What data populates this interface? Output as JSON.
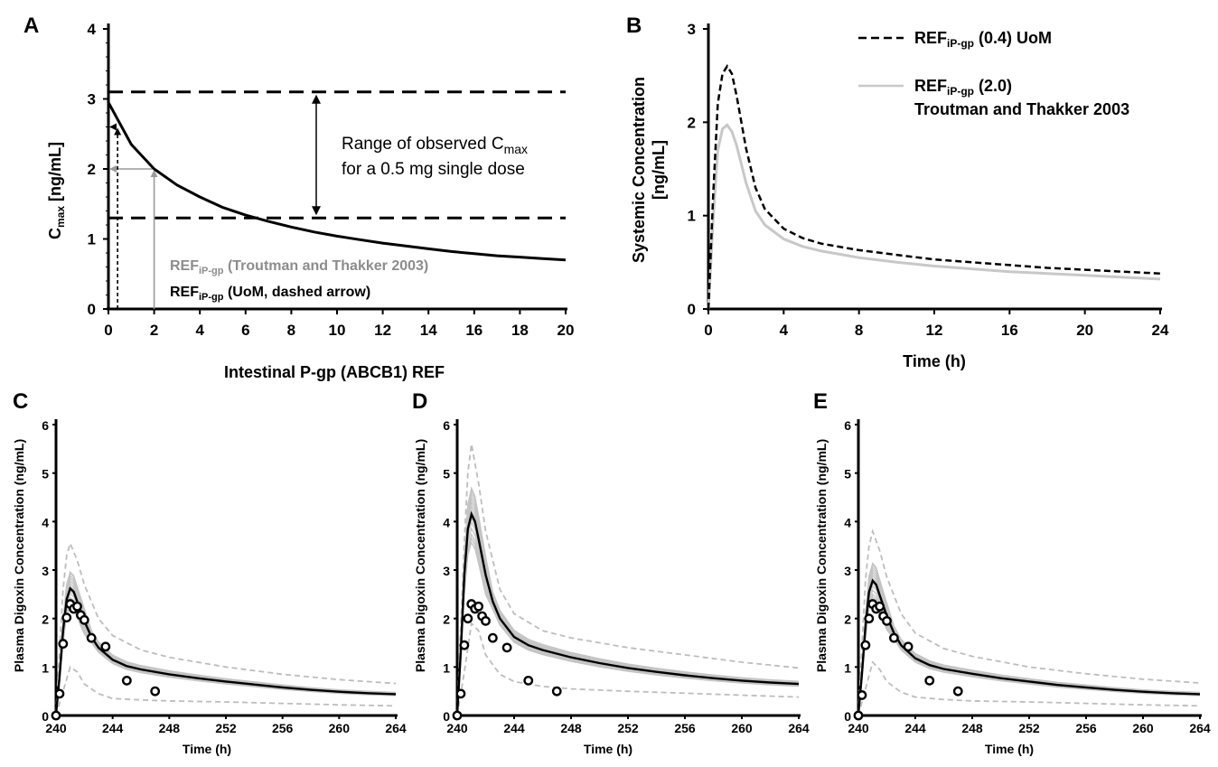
{
  "chart_data": [
    {
      "panel": "A",
      "type": "line",
      "xlabel": "Intestinal P-gp (ABCB1) REF",
      "ylabel_main": "C",
      "ylabel_sub": "max",
      "ylabel_rest": " [ng/mL]",
      "xlim": [
        0,
        20
      ],
      "ylim": [
        0,
        4
      ],
      "xticks": [
        "0",
        "2",
        "4",
        "6",
        "8",
        "10",
        "12",
        "14",
        "16",
        "18",
        "20"
      ],
      "yticks": [
        "0",
        "1",
        "2",
        "3",
        "4"
      ],
      "series": [
        {
          "x": [
            0,
            1,
            2,
            3,
            4,
            5,
            6,
            7,
            8,
            9,
            10,
            11,
            12,
            13,
            14,
            15,
            16,
            17,
            18,
            19,
            20
          ],
          "y": [
            2.95,
            2.35,
            2.0,
            1.77,
            1.6,
            1.45,
            1.34,
            1.25,
            1.17,
            1.1,
            1.04,
            0.99,
            0.94,
            0.9,
            0.86,
            0.82,
            0.79,
            0.76,
            0.74,
            0.72,
            0.7
          ]
        }
      ],
      "observed_range": [
        1.3,
        3.1
      ],
      "range_text_1": "Range of observed C",
      "range_text_1_sub": "max",
      "range_text_2": "for a 0.5 mg single dose",
      "markers": [
        {
          "x": 2.0,
          "y": 2.0,
          "color": "#9a9a9a",
          "dashed": false
        },
        {
          "x": 0.4,
          "y": 2.6,
          "color": "#000000",
          "dashed": true
        }
      ],
      "marker_label_1": {
        "pre": "REF",
        "sub": "iP-gp",
        "post": " (Troutman and Thakker 2003)",
        "color": "#8c8c8c"
      },
      "marker_label_2": {
        "pre": "REF",
        "sub": "iP-gp",
        "post": " (UoM, dashed arrow)",
        "color": "#000000"
      }
    },
    {
      "panel": "B",
      "type": "line",
      "xlabel": "Time (h)",
      "ylabel_1": "Systemic Concentration",
      "ylabel_2": "[ng/mL]",
      "xlim": [
        0,
        24
      ],
      "ylim": [
        0,
        3
      ],
      "xticks": [
        "0",
        "4",
        "8",
        "12",
        "16",
        "20",
        "24"
      ],
      "yticks": [
        "0",
        "1",
        "2",
        "3"
      ],
      "series": [
        {
          "legend_pre": "REF",
          "legend_sub": "iP-gp",
          "legend_post": " (0.4) UoM",
          "color": "#000000",
          "dashed": true,
          "x": [
            0,
            0.25,
            0.5,
            0.75,
            1.0,
            1.25,
            1.5,
            2,
            2.5,
            3,
            4,
            5,
            6,
            8,
            10,
            12,
            14,
            16,
            18,
            20,
            22,
            24
          ],
          "y": [
            0,
            1.2,
            2.2,
            2.52,
            2.6,
            2.52,
            2.28,
            1.72,
            1.3,
            1.07,
            0.86,
            0.76,
            0.7,
            0.63,
            0.58,
            0.53,
            0.5,
            0.47,
            0.44,
            0.42,
            0.4,
            0.38
          ]
        },
        {
          "legend_pre": "REF",
          "legend_sub": "iP-gp",
          "legend_post": " (2.0)",
          "legend_line2": "Troutman and Thakker 2003",
          "color": "#c8c8c8",
          "dashed": false,
          "x": [
            0,
            0.25,
            0.5,
            0.75,
            1.0,
            1.25,
            1.5,
            2,
            2.5,
            3,
            4,
            5,
            6,
            8,
            10,
            12,
            14,
            16,
            18,
            20,
            22,
            24
          ],
          "y": [
            0,
            0.95,
            1.7,
            1.93,
            1.97,
            1.9,
            1.75,
            1.35,
            1.05,
            0.9,
            0.75,
            0.67,
            0.62,
            0.55,
            0.5,
            0.46,
            0.43,
            0.4,
            0.38,
            0.36,
            0.34,
            0.32
          ]
        }
      ]
    },
    {
      "panel": "C",
      "type": "line",
      "xlabel": "Time (h)",
      "ylabel": "Plasma Digoxin Concentration (ng/mL)",
      "xlim": [
        240,
        264
      ],
      "ylim": [
        0,
        6
      ],
      "xticks": [
        "240",
        "244",
        "248",
        "252",
        "256",
        "260",
        "264"
      ],
      "yticks": [
        "0",
        "1",
        "2",
        "3",
        "4",
        "5",
        "6"
      ],
      "peak": 2.62,
      "mean_x": [
        240,
        240.25,
        240.5,
        240.75,
        241,
        241.25,
        241.5,
        242,
        242.5,
        243,
        244,
        245,
        246,
        248,
        250,
        252,
        254,
        256,
        258,
        260,
        262,
        264
      ],
      "mean_y": [
        0.02,
        0.8,
        1.75,
        2.4,
        2.62,
        2.55,
        2.35,
        1.95,
        1.62,
        1.4,
        1.15,
        1.02,
        0.95,
        0.85,
        0.77,
        0.7,
        0.64,
        0.58,
        0.53,
        0.49,
        0.46,
        0.44
      ],
      "upper_x": [
        240,
        240.5,
        240.75,
        241,
        241.5,
        242,
        243,
        244,
        246,
        248,
        252,
        256,
        260,
        264
      ],
      "upper_y": [
        0.05,
        2.6,
        3.3,
        3.55,
        3.2,
        2.7,
        2.0,
        1.65,
        1.35,
        1.2,
        1.0,
        0.85,
        0.74,
        0.66
      ],
      "lower_x": [
        240,
        240.5,
        241,
        241.5,
        242,
        243,
        244,
        246,
        248,
        252,
        256,
        260,
        264
      ],
      "lower_y": [
        0.0,
        0.5,
        1.0,
        0.9,
        0.65,
        0.45,
        0.35,
        0.32,
        0.3,
        0.28,
        0.25,
        0.22,
        0.2
      ],
      "observed": [
        {
          "x": 240.0,
          "y": 0.0
        },
        {
          "x": 240.25,
          "y": 0.45
        },
        {
          "x": 240.5,
          "y": 1.48
        },
        {
          "x": 240.75,
          "y": 2.02
        },
        {
          "x": 241.0,
          "y": 2.3
        },
        {
          "x": 241.25,
          "y": 2.2
        },
        {
          "x": 241.5,
          "y": 2.25
        },
        {
          "x": 241.75,
          "y": 2.07
        },
        {
          "x": 242.0,
          "y": 1.97
        },
        {
          "x": 242.5,
          "y": 1.6
        },
        {
          "x": 243.5,
          "y": 1.42
        },
        {
          "x": 245.0,
          "y": 0.72
        },
        {
          "x": 247.0,
          "y": 0.5
        }
      ]
    },
    {
      "panel": "D",
      "type": "line",
      "xlabel": "Time (h)",
      "ylabel": "Plasma Digoxin Concentration (ng/mL)",
      "xlim": [
        240,
        264
      ],
      "ylim": [
        0,
        6
      ],
      "xticks": [
        "240",
        "244",
        "248",
        "252",
        "256",
        "260",
        "264"
      ],
      "yticks": [
        "0",
        "1",
        "2",
        "3",
        "4",
        "5",
        "6"
      ],
      "mean_x": [
        240,
        240.25,
        240.5,
        240.75,
        241,
        241.25,
        241.5,
        242,
        242.5,
        243,
        244,
        245,
        246,
        248,
        250,
        252,
        254,
        256,
        258,
        260,
        262,
        264
      ],
      "mean_y": [
        0.02,
        1.3,
        2.9,
        3.85,
        4.15,
        4.0,
        3.65,
        2.9,
        2.35,
        2.0,
        1.62,
        1.45,
        1.35,
        1.2,
        1.08,
        0.98,
        0.9,
        0.83,
        0.77,
        0.72,
        0.68,
        0.65
      ],
      "upper_x": [
        240,
        240.5,
        240.75,
        241,
        241.5,
        242,
        243,
        244,
        246,
        248,
        252,
        256,
        260,
        264
      ],
      "upper_y": [
        0.05,
        3.6,
        5.0,
        5.6,
        4.8,
        3.8,
        2.6,
        2.1,
        1.75,
        1.6,
        1.4,
        1.25,
        1.1,
        0.98
      ],
      "lower_x": [
        240,
        240.5,
        241,
        241.5,
        242,
        243,
        244,
        246,
        248,
        252,
        256,
        260,
        264
      ],
      "lower_y": [
        0.0,
        0.9,
        1.9,
        1.75,
        1.25,
        0.85,
        0.7,
        0.6,
        0.55,
        0.5,
        0.46,
        0.42,
        0.38
      ],
      "observed": [
        {
          "x": 240.0,
          "y": 0.0
        },
        {
          "x": 240.25,
          "y": 0.45
        },
        {
          "x": 240.5,
          "y": 1.45
        },
        {
          "x": 240.75,
          "y": 2.0
        },
        {
          "x": 241.0,
          "y": 2.3
        },
        {
          "x": 241.25,
          "y": 2.2
        },
        {
          "x": 241.5,
          "y": 2.25
        },
        {
          "x": 241.75,
          "y": 2.05
        },
        {
          "x": 242.0,
          "y": 1.95
        },
        {
          "x": 242.5,
          "y": 1.6
        },
        {
          "x": 243.5,
          "y": 1.4
        },
        {
          "x": 245.0,
          "y": 0.72
        },
        {
          "x": 247.0,
          "y": 0.5
        }
      ]
    },
    {
      "panel": "E",
      "type": "line",
      "xlabel": "Time (h)",
      "ylabel": "Plasma Digoxin Concentration (ng/mL)",
      "xlim": [
        240,
        264
      ],
      "ylim": [
        0,
        6
      ],
      "xticks": [
        "240",
        "244",
        "248",
        "252",
        "256",
        "260",
        "264"
      ],
      "yticks": [
        "0",
        "1",
        "2",
        "3",
        "4",
        "5",
        "6"
      ],
      "mean_x": [
        240,
        240.25,
        240.5,
        240.75,
        241,
        241.25,
        241.5,
        242,
        242.5,
        243,
        244,
        245,
        246,
        248,
        250,
        252,
        254,
        256,
        258,
        260,
        262,
        264
      ],
      "mean_y": [
        0.02,
        0.85,
        1.85,
        2.55,
        2.78,
        2.7,
        2.48,
        2.05,
        1.7,
        1.45,
        1.18,
        1.04,
        0.96,
        0.86,
        0.77,
        0.7,
        0.63,
        0.58,
        0.53,
        0.49,
        0.46,
        0.44
      ],
      "upper_x": [
        240,
        240.5,
        240.75,
        241,
        241.5,
        242,
        243,
        244,
        246,
        248,
        252,
        256,
        260,
        264
      ],
      "upper_y": [
        0.05,
        2.8,
        3.5,
        3.8,
        3.4,
        2.85,
        2.1,
        1.7,
        1.38,
        1.22,
        1.0,
        0.86,
        0.75,
        0.67
      ],
      "lower_x": [
        240,
        240.5,
        241,
        241.5,
        242,
        243,
        244,
        246,
        248,
        252,
        256,
        260,
        264
      ],
      "lower_y": [
        0.0,
        0.55,
        1.1,
        0.95,
        0.7,
        0.48,
        0.38,
        0.33,
        0.3,
        0.28,
        0.25,
        0.22,
        0.2
      ],
      "observed": [
        {
          "x": 240.0,
          "y": 0.0
        },
        {
          "x": 240.25,
          "y": 0.42
        },
        {
          "x": 240.5,
          "y": 1.45
        },
        {
          "x": 240.75,
          "y": 2.0
        },
        {
          "x": 241.0,
          "y": 2.3
        },
        {
          "x": 241.25,
          "y": 2.2
        },
        {
          "x": 241.5,
          "y": 2.25
        },
        {
          "x": 241.75,
          "y": 2.05
        },
        {
          "x": 242.0,
          "y": 1.95
        },
        {
          "x": 242.5,
          "y": 1.6
        },
        {
          "x": 243.5,
          "y": 1.42
        },
        {
          "x": 245.0,
          "y": 0.72
        },
        {
          "x": 247.0,
          "y": 0.5
        }
      ]
    }
  ]
}
